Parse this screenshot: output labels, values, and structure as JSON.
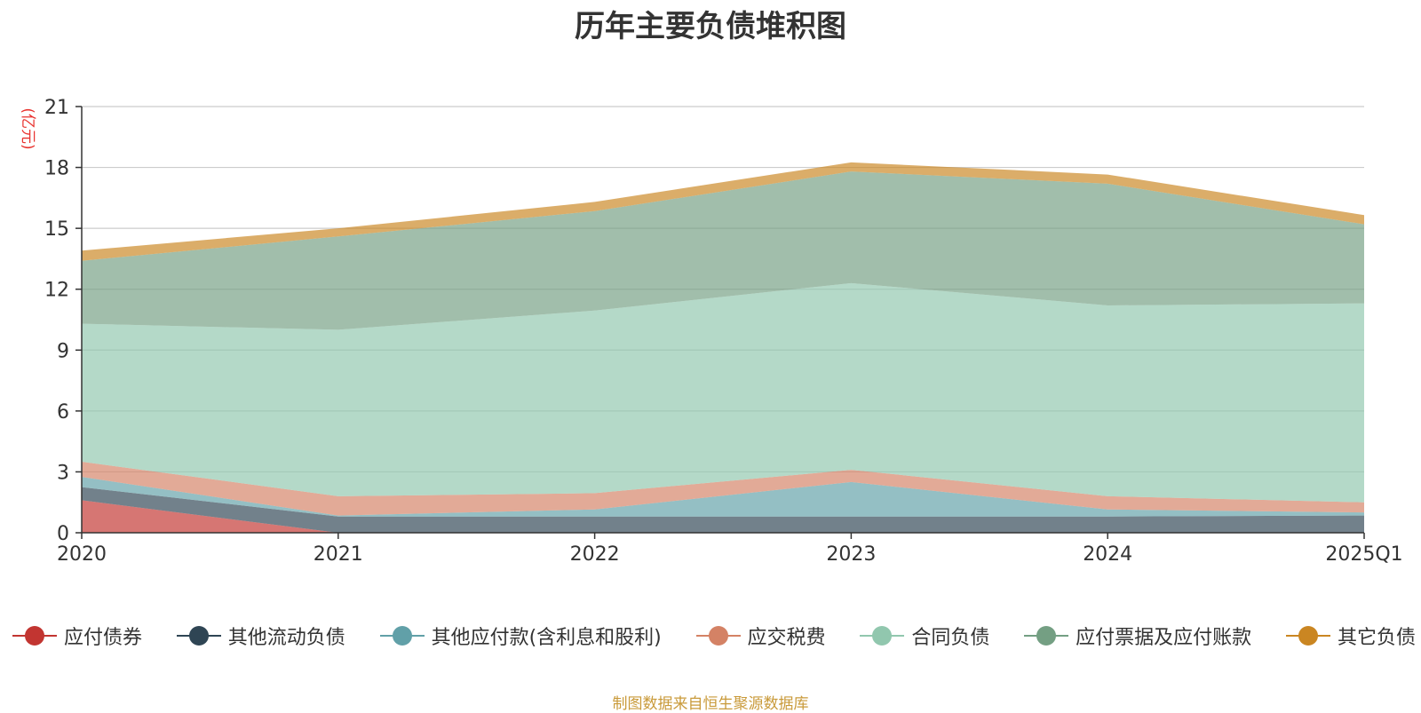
{
  "chart_data": {
    "type": "area",
    "stacked": true,
    "title": "历年主要负债堆积图",
    "ylabel": "(亿元)",
    "xlabel": "",
    "categories": [
      "2020",
      "2021",
      "2022",
      "2023",
      "2024",
      "2025Q1"
    ],
    "ylim": [
      0,
      21
    ],
    "yticks": [
      0,
      3,
      6,
      9,
      12,
      15,
      18,
      21
    ],
    "grid": true,
    "legend_position": "bottom",
    "series": [
      {
        "name": "应付债券",
        "color": "#c23531",
        "values": [
          1.6,
          0,
          0,
          0,
          0,
          0
        ]
      },
      {
        "name": "其他流动负债",
        "color": "#2f4554",
        "values": [
          0.65,
          0.8,
          0.8,
          0.8,
          0.8,
          0.85
        ]
      },
      {
        "name": "其他应付款(含利息和股利)",
        "color": "#61a0a8",
        "values": [
          0.5,
          0.05,
          0.35,
          1.7,
          0.35,
          0.15
        ]
      },
      {
        "name": "应交税费",
        "color": "#d48265",
        "values": [
          0.75,
          0.95,
          0.8,
          0.6,
          0.65,
          0.5
        ]
      },
      {
        "name": "合同负债",
        "color": "#91c7ae",
        "values": [
          6.8,
          8.2,
          9.0,
          9.2,
          9.4,
          9.8
        ]
      },
      {
        "name": "应付票据及应付账款",
        "color": "#749f83",
        "values": [
          3.1,
          4.6,
          4.9,
          5.5,
          6.0,
          3.9
        ]
      },
      {
        "name": "其它负债",
        "color": "#ca8622",
        "values": [
          0.5,
          0.4,
          0.45,
          0.45,
          0.45,
          0.45
        ]
      }
    ],
    "source_note": "制图数据来自恒生聚源数据库"
  }
}
